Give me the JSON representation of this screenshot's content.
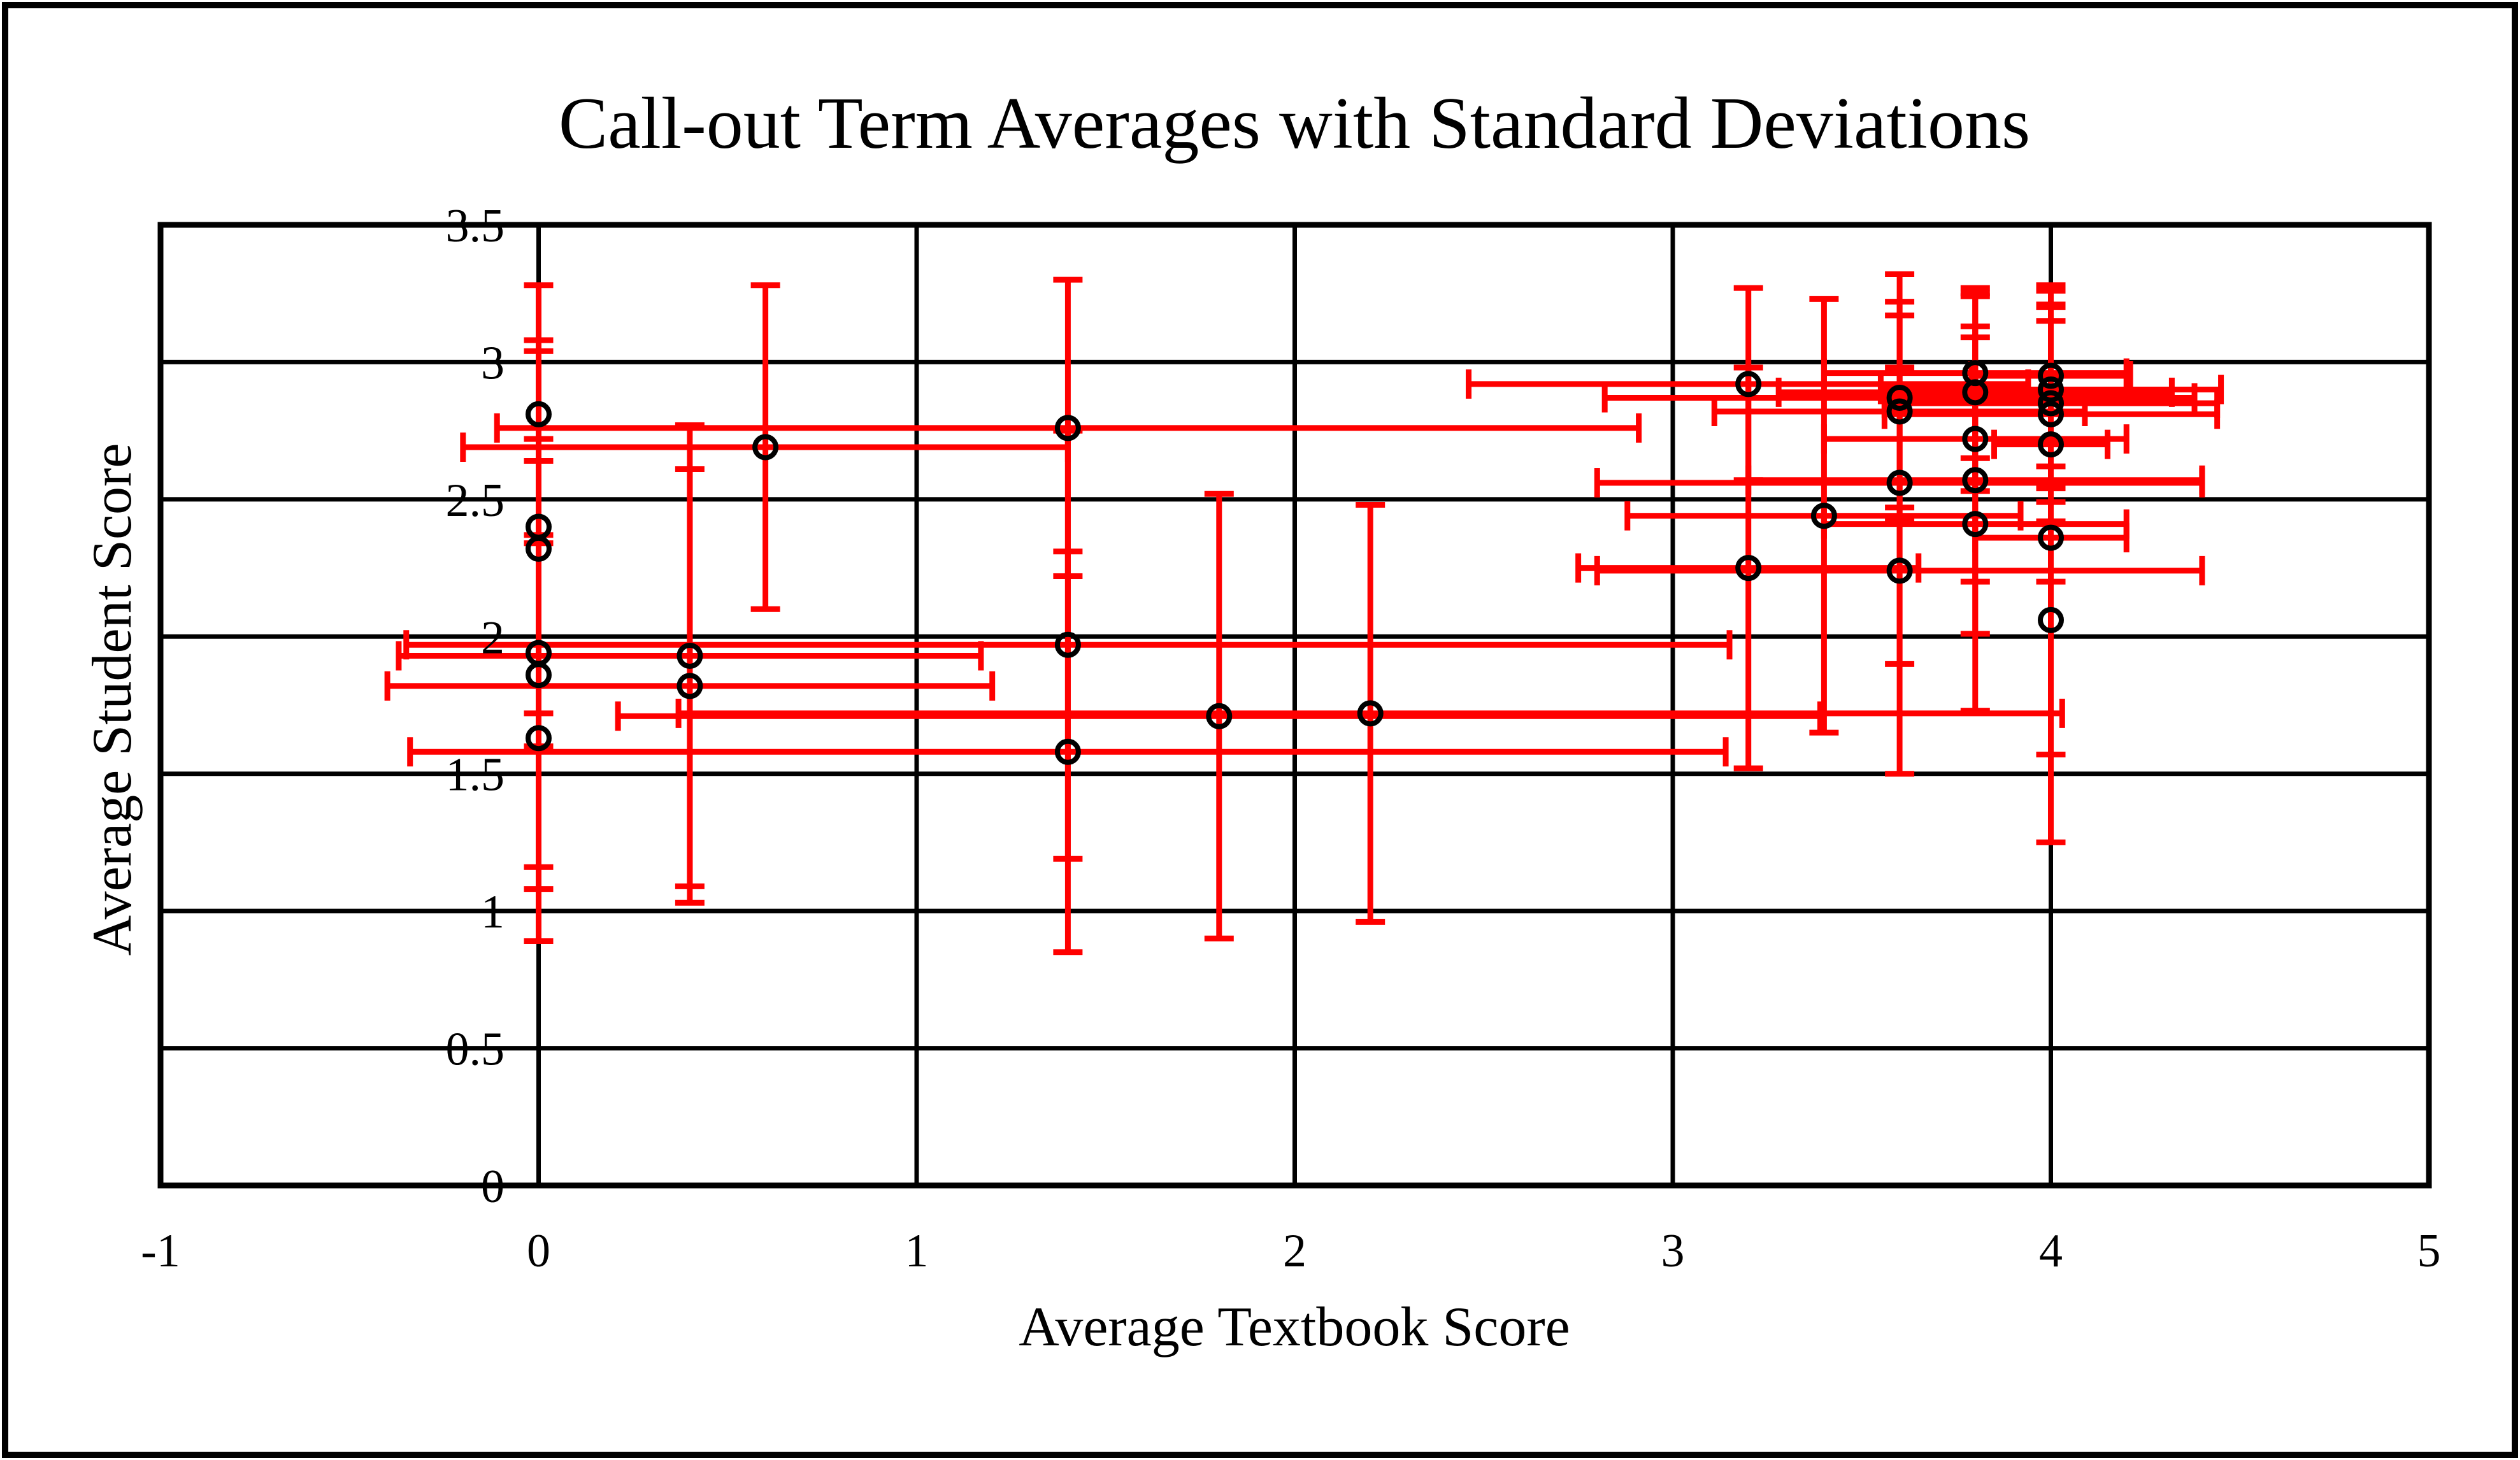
{
  "chart_data": {
    "type": "scatter",
    "title": "Call-out Term Averages with Standard Deviations",
    "xlabel": "Average Textbook Score",
    "ylabel": "Average Student Score",
    "xlim": [
      -1,
      5
    ],
    "ylim": [
      0,
      3.5
    ],
    "grid": true,
    "legend_position": "none",
    "marker": "open-circle",
    "marker_color": "#000000",
    "error_bar_color": "#ff0000",
    "gridline_color": "#000000",
    "background_color": "#ffffff",
    "xticks": [
      {
        "value": -1,
        "label": "-1"
      },
      {
        "value": 0,
        "label": "0"
      },
      {
        "value": 1,
        "label": "1"
      },
      {
        "value": 2,
        "label": "2"
      },
      {
        "value": 3,
        "label": "3"
      },
      {
        "value": 4,
        "label": "4"
      },
      {
        "value": 5,
        "label": "5"
      }
    ],
    "yticks": [
      {
        "value": 0,
        "label": "0"
      },
      {
        "value": 0.5,
        "label": "0.5"
      },
      {
        "value": 1,
        "label": "1"
      },
      {
        "value": 1.5,
        "label": "1.5"
      },
      {
        "value": 2,
        "label": "2"
      },
      {
        "value": 2.5,
        "label": "2.5"
      },
      {
        "value": 3,
        "label": "3"
      },
      {
        "value": 3.5,
        "label": "3.5"
      }
    ],
    "series": [
      {
        "name": "Call-out term averages",
        "points": [
          {
            "x": 0,
            "y": 2.81,
            "xerr": 0,
            "yerr": 0.47
          },
          {
            "x": 0,
            "y": 2.4,
            "xerr": 0,
            "yerr": 0.68
          },
          {
            "x": 0,
            "y": 2.32,
            "xerr": 0,
            "yerr": 0.72
          },
          {
            "x": 0,
            "y": 1.94,
            "xerr": 0,
            "yerr": 0.78
          },
          {
            "x": 0,
            "y": 1.86,
            "xerr": 0,
            "yerr": 0.78
          },
          {
            "x": 0,
            "y": 1.63,
            "xerr": 0,
            "yerr": 0.74
          },
          {
            "x": 0.4,
            "y": 1.93,
            "xerr": 0.77,
            "yerr": 0.84
          },
          {
            "x": 0.4,
            "y": 1.82,
            "xerr": 0.8,
            "yerr": 0.79
          },
          {
            "x": 0.6,
            "y": 2.69,
            "xerr": 0.8,
            "yerr": 0.59
          },
          {
            "x": 1.4,
            "y": 2.76,
            "xerr": 1.51,
            "yerr": 0.54
          },
          {
            "x": 1.4,
            "y": 1.97,
            "xerr": 1.75,
            "yerr": 0.78
          },
          {
            "x": 1.4,
            "y": 1.58,
            "xerr": 1.74,
            "yerr": 0.73
          },
          {
            "x": 1.8,
            "y": 1.71,
            "xerr": 1.59,
            "yerr": 0.81
          },
          {
            "x": 2.2,
            "y": 1.72,
            "xerr": 1.83,
            "yerr": 0.76
          },
          {
            "x": 3.2,
            "y": 2.92,
            "xerr": 0.74,
            "yerr": 0.35
          },
          {
            "x": 3.2,
            "y": 2.25,
            "xerr": 0.45,
            "yerr": 0.73
          },
          {
            "x": 3.4,
            "y": 2.44,
            "xerr": 0.52,
            "yerr": 0.79
          },
          {
            "x": 3.6,
            "y": 2.87,
            "xerr": 0.78,
            "yerr": 0.45
          },
          {
            "x": 3.6,
            "y": 2.82,
            "xerr": 0.49,
            "yerr": 0.35
          },
          {
            "x": 3.6,
            "y": 2.56,
            "xerr": 0.8,
            "yerr": 0.66
          },
          {
            "x": 3.6,
            "y": 2.24,
            "xerr": 0.8,
            "yerr": 0.74
          },
          {
            "x": 3.8,
            "y": 2.96,
            "xerr": 0.4,
            "yerr": 0.31
          },
          {
            "x": 3.8,
            "y": 2.89,
            "xerr": 0.52,
            "yerr": 0.36
          },
          {
            "x": 3.8,
            "y": 2.72,
            "xerr": 0.4,
            "yerr": 0.52
          },
          {
            "x": 3.8,
            "y": 2.57,
            "xerr": 0.6,
            "yerr": 0.56
          },
          {
            "x": 3.8,
            "y": 2.41,
            "xerr": 0.4,
            "yerr": 0.68
          },
          {
            "x": 4.0,
            "y": 2.95,
            "xerr": 0.21,
            "yerr": 0.33
          },
          {
            "x": 4.0,
            "y": 2.9,
            "xerr": 0.45,
            "yerr": 0.36
          },
          {
            "x": 4.0,
            "y": 2.85,
            "xerr": 0.44,
            "yerr": 0.36
          },
          {
            "x": 4.0,
            "y": 2.81,
            "xerr": 0.44,
            "yerr": 0.39
          },
          {
            "x": 4.0,
            "y": 2.7,
            "xerr": 0.15,
            "yerr": 0.5
          },
          {
            "x": 4.0,
            "y": 2.36,
            "xerr": 0.2,
            "yerr": 0.79
          },
          {
            "x": 4.0,
            "y": 2.06,
            "xerr": 0,
            "yerr": 0.81
          }
        ]
      }
    ]
  }
}
